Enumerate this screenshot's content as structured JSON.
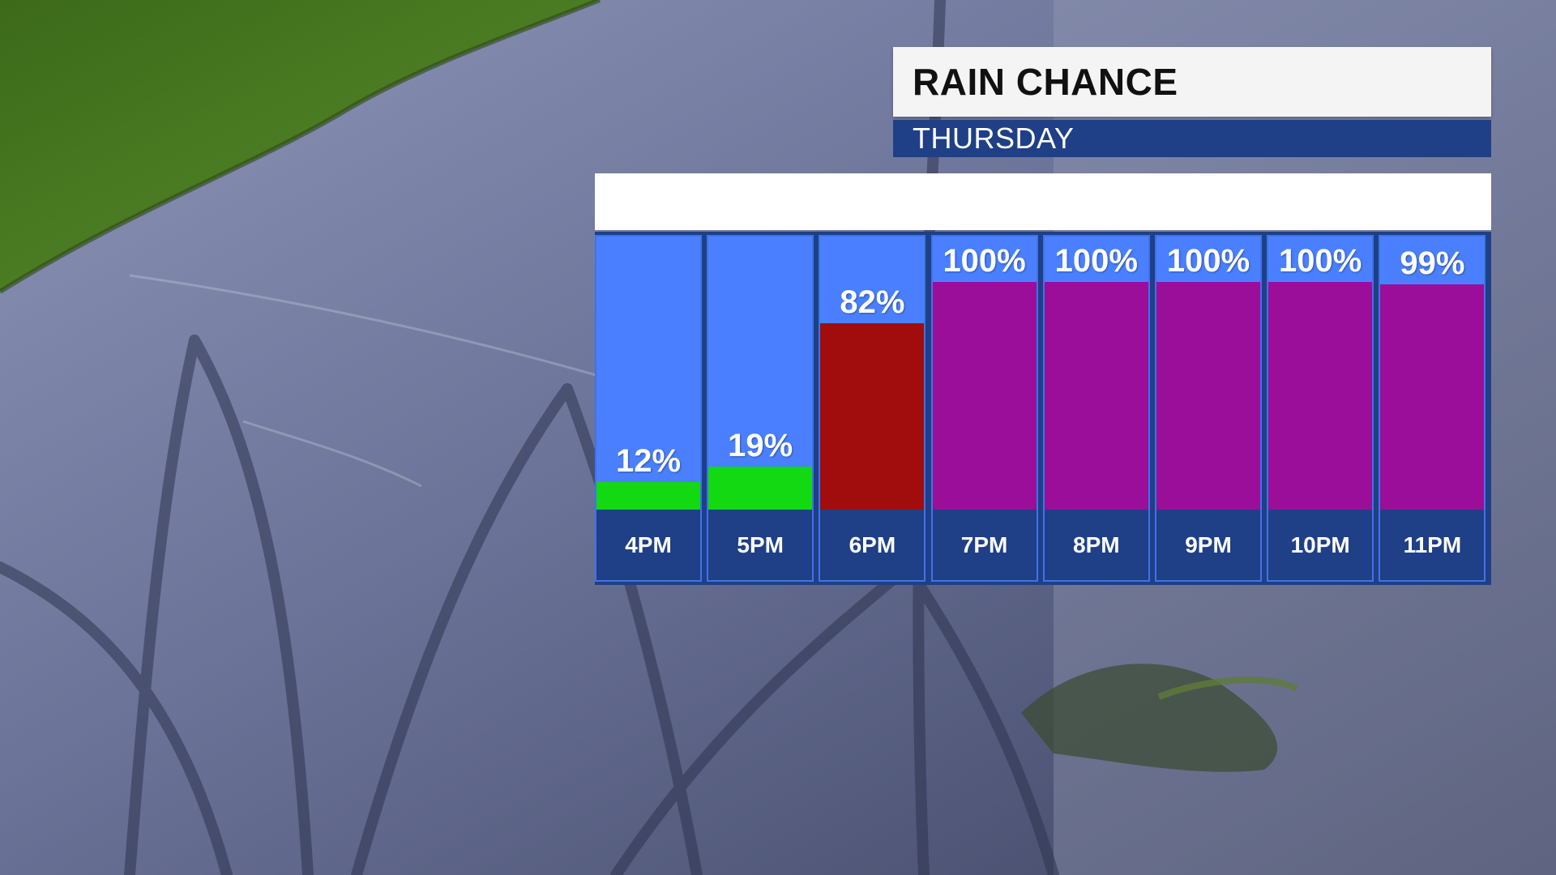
{
  "graphic": {
    "title": "RAIN CHANCE",
    "subtitle": "THURSDAY",
    "header_text": ""
  },
  "colors": {
    "column_bg": "#4a80ff",
    "label_band": "#1f3f86",
    "low": "#12d912",
    "medium": "#a10d0d",
    "high": "#9a0e9a"
  },
  "chart_data": {
    "type": "bar",
    "title": "RAIN CHANCE",
    "subtitle": "THURSDAY",
    "categories": [
      "4PM",
      "5PM",
      "6PM",
      "7PM",
      "8PM",
      "9PM",
      "10PM",
      "11PM"
    ],
    "values": [
      12,
      19,
      82,
      100,
      100,
      100,
      100,
      99
    ],
    "labels": [
      "12%",
      "19%",
      "82%",
      "100%",
      "100%",
      "100%",
      "100%",
      "99%"
    ],
    "bar_colors": [
      "#12d912",
      "#12d912",
      "#a10d0d",
      "#9a0e9a",
      "#9a0e9a",
      "#9a0e9a",
      "#9a0e9a",
      "#9a0e9a"
    ],
    "ylim": [
      0,
      120
    ],
    "xlabel": "",
    "ylabel": ""
  }
}
